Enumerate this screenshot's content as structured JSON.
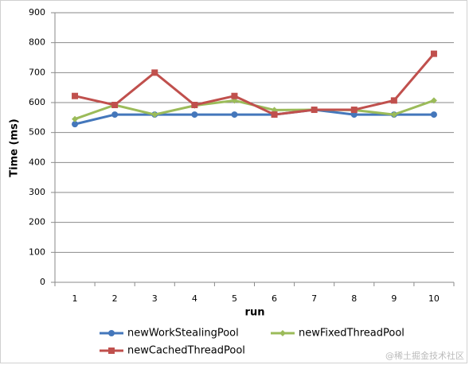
{
  "chart_data": {
    "type": "line",
    "x_label": "run",
    "y_label": "Time (ms)",
    "categories": [
      "1",
      "2",
      "3",
      "4",
      "5",
      "6",
      "7",
      "8",
      "9",
      "10"
    ],
    "series": [
      {
        "name": "newWorkStealingPool",
        "color": "#4477bb",
        "marker": "circle",
        "values": [
          528,
          560,
          560,
          560,
          560,
          560,
          576,
          560,
          560,
          560
        ]
      },
      {
        "name": "newFixedThreadPool",
        "color": "#9bbb59",
        "marker": "diamond",
        "values": [
          545,
          592,
          560,
          590,
          607,
          575,
          576,
          575,
          560,
          607
        ]
      },
      {
        "name": "newCachedThreadPool",
        "color": "#c0504d",
        "marker": "square",
        "values": [
          622,
          592,
          700,
          592,
          622,
          560,
          576,
          576,
          607,
          763
        ]
      }
    ],
    "ylim": [
      0,
      900
    ],
    "yticks": [
      0,
      100,
      200,
      300,
      400,
      500,
      600,
      700,
      800,
      900
    ],
    "grid": true,
    "watermark": "@稀土掘金技术社区"
  }
}
